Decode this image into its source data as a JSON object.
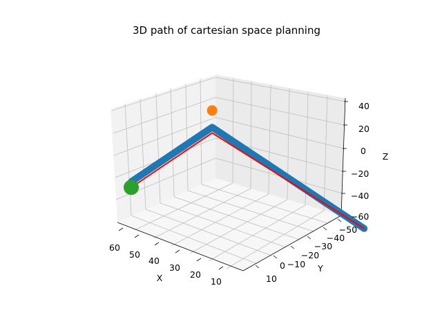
{
  "chart_data": {
    "type": "line3d",
    "title": "3D path of cartesian space planning",
    "xlabel": "X",
    "ylabel": "Y",
    "zlabel": "Z",
    "x_ticks": [
      "60",
      "50",
      "40",
      "30",
      "20",
      "10"
    ],
    "y_ticks": [
      "10",
      "0",
      "−10",
      "−20",
      "−30",
      "−40",
      "−50"
    ],
    "z_ticks": [
      "40",
      "20",
      "0",
      "−20",
      "−40",
      "−60"
    ],
    "grid": true,
    "colors": {
      "planned_path": "#1f77b4",
      "reference_path": "#ff0000",
      "start_point": "#2ca02c",
      "goal_point": "#ff7f0e"
    },
    "series": [
      {
        "kind": "thick-line",
        "color": "#1f77b4",
        "points": [
          [
            60,
            10,
            -30
          ],
          [
            35,
            0,
            35
          ],
          [
            12,
            -52,
            -60
          ]
        ]
      },
      {
        "kind": "line",
        "color": "#ff0000",
        "points": [
          [
            60,
            10,
            -35
          ],
          [
            35,
            0,
            30
          ],
          [
            12,
            -52,
            -60
          ]
        ]
      },
      {
        "kind": "point",
        "color": "#2ca02c",
        "points": [
          [
            60,
            10,
            -35
          ]
        ]
      },
      {
        "kind": "point",
        "color": "#ff7f0e",
        "points": [
          [
            35,
            0,
            50
          ]
        ]
      }
    ]
  }
}
